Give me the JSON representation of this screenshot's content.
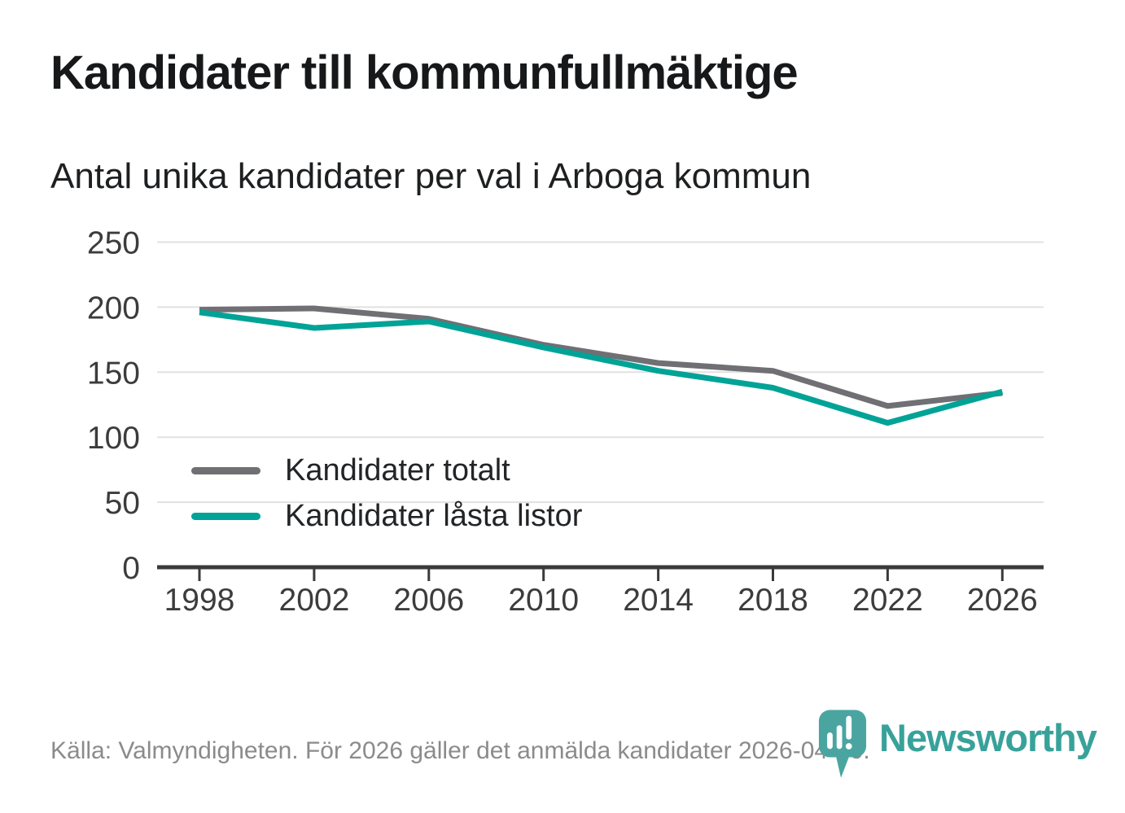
{
  "chart_data": {
    "type": "line",
    "title": "Kandidater till kommunfullmäktige",
    "subtitle": "Antal unika kandidater per val i Arboga kommun",
    "x": [
      1998,
      2002,
      2006,
      2010,
      2014,
      2018,
      2022,
      2026
    ],
    "series": [
      {
        "name": "Kandidater totalt",
        "color": "#6f6f74",
        "values": [
          198,
          199,
          191,
          171,
          157,
          151,
          124,
          134
        ]
      },
      {
        "name": "Kandidater låsta listor",
        "color": "#00a396",
        "values": [
          196,
          184,
          189,
          169,
          151,
          138,
          111,
          135
        ]
      }
    ],
    "ylim": [
      0,
      250
    ],
    "yticks": [
      0,
      50,
      100,
      150,
      200,
      250
    ],
    "grid": true,
    "legend_position": "inside-bottom-left"
  },
  "footer": {
    "source": "Källa: Valmyndigheten. För 2026 gäller det anmälda kandidater 2026-04-10.",
    "brand": "Newsworthy"
  },
  "icons": {
    "logo_pin": "newsworthy-pin-with-bar-chart"
  },
  "colors": {
    "accent_teal": "#00a396",
    "line_gray": "#6f6f74",
    "grid": "#e1e1e1",
    "axis": "#3a3a3a",
    "tick_label": "#3c3c3c",
    "legend_text": "#222426",
    "footer_text": "#8b8b8b",
    "logo_teal": "#38a29a",
    "logo_pin_teal": "#4aa5a0"
  }
}
